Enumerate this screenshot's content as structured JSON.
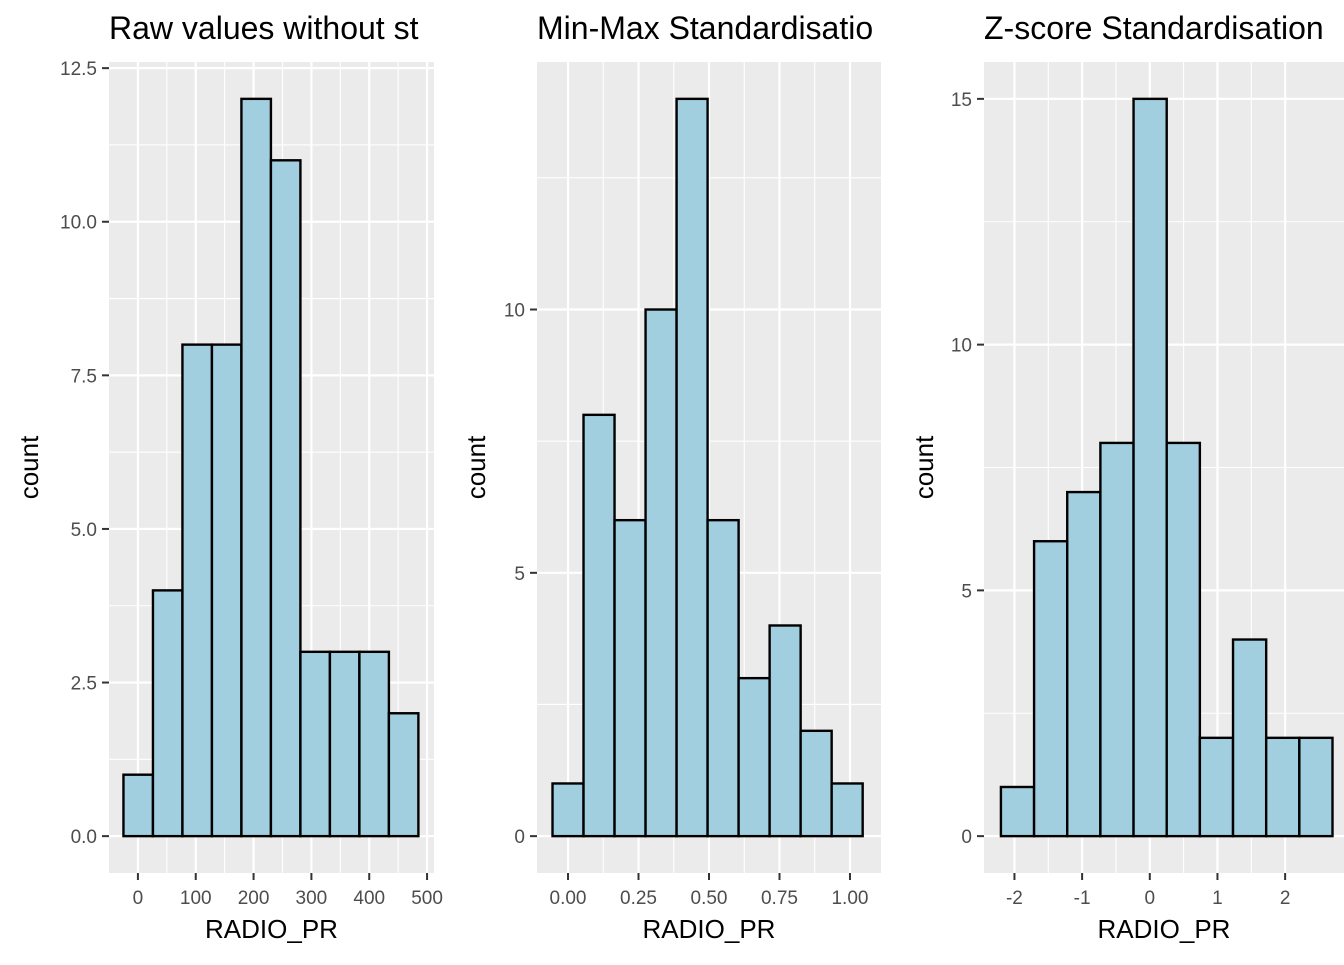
{
  "colors": {
    "bar_fill": "#a1cfe0",
    "bar_outline": "#000000",
    "panel_background": "#ebebeb",
    "grid": "#ffffff"
  },
  "chart_data": [
    {
      "type": "bar",
      "title": "Raw values without st",
      "xlabel": "RADIO_PR",
      "ylabel": "count",
      "grid": true,
      "xlim": [
        -50,
        512
      ],
      "ylim": [
        -0.6,
        12.6
      ],
      "xticks": [
        0,
        100,
        200,
        300,
        400,
        500
      ],
      "xtick_labels": [
        "0",
        "100",
        "200",
        "300",
        "400",
        "500"
      ],
      "yticks": [
        0,
        2.5,
        5,
        7.5,
        10,
        12.5
      ],
      "ytick_labels": [
        "0.0",
        "2.5",
        "5.0",
        "7.5",
        "10.0",
        "12.5"
      ],
      "bins": [
        {
          "x0": -25,
          "x1": 26,
          "count": 1
        },
        {
          "x0": 26,
          "x1": 77,
          "count": 4
        },
        {
          "x0": 77,
          "x1": 128,
          "count": 8
        },
        {
          "x0": 128,
          "x1": 179,
          "count": 8
        },
        {
          "x0": 179,
          "x1": 230,
          "count": 12
        },
        {
          "x0": 230,
          "x1": 281,
          "count": 11
        },
        {
          "x0": 281,
          "x1": 332,
          "count": 3
        },
        {
          "x0": 332,
          "x1": 383,
          "count": 3
        },
        {
          "x0": 383,
          "x1": 434,
          "count": 3
        },
        {
          "x0": 434,
          "x1": 485,
          "count": 2
        }
      ]
    },
    {
      "type": "bar",
      "title": "Min-Max Standardisatio",
      "xlabel": "RADIO_PR",
      "ylabel": "count",
      "grid": true,
      "xlim": [
        -0.11,
        1.11
      ],
      "ylim": [
        -0.7,
        14.7
      ],
      "xticks": [
        0,
        0.25,
        0.5,
        0.75,
        1.0
      ],
      "xtick_labels": [
        "0.00",
        "0.25",
        "0.50",
        "0.75",
        "1.00"
      ],
      "yticks": [
        0,
        5,
        10
      ],
      "ytick_labels": [
        "0",
        "5",
        "10"
      ],
      "bins": [
        {
          "x0": -0.055,
          "x1": 0.055,
          "count": 1
        },
        {
          "x0": 0.055,
          "x1": 0.165,
          "count": 8
        },
        {
          "x0": 0.165,
          "x1": 0.275,
          "count": 6
        },
        {
          "x0": 0.275,
          "x1": 0.385,
          "count": 10
        },
        {
          "x0": 0.385,
          "x1": 0.495,
          "count": 14
        },
        {
          "x0": 0.495,
          "x1": 0.605,
          "count": 6
        },
        {
          "x0": 0.605,
          "x1": 0.715,
          "count": 3
        },
        {
          "x0": 0.715,
          "x1": 0.825,
          "count": 4
        },
        {
          "x0": 0.825,
          "x1": 0.935,
          "count": 2
        },
        {
          "x0": 0.935,
          "x1": 1.045,
          "count": 1
        }
      ]
    },
    {
      "type": "bar",
      "title": "Z-score Standardisation",
      "xlabel": "RADIO_PR",
      "ylabel": "count",
      "grid": true,
      "xlim": [
        -2.45,
        2.87
      ],
      "ylim": [
        -0.75,
        15.75
      ],
      "xticks": [
        -2,
        -1,
        0,
        1,
        2
      ],
      "xtick_labels": [
        "-2",
        "-1",
        "0",
        "1",
        "2"
      ],
      "yticks": [
        0,
        5,
        10,
        15
      ],
      "ytick_labels": [
        "0",
        "5",
        "10",
        "15"
      ],
      "bins": [
        {
          "x0": -2.2,
          "x1": -1.71,
          "count": 1
        },
        {
          "x0": -1.71,
          "x1": -1.22,
          "count": 6
        },
        {
          "x0": -1.22,
          "x1": -0.73,
          "count": 7
        },
        {
          "x0": -0.73,
          "x1": -0.24,
          "count": 8
        },
        {
          "x0": -0.24,
          "x1": 0.25,
          "count": 15
        },
        {
          "x0": 0.25,
          "x1": 0.74,
          "count": 8
        },
        {
          "x0": 0.74,
          "x1": 1.23,
          "count": 2
        },
        {
          "x0": 1.23,
          "x1": 1.72,
          "count": 4
        },
        {
          "x0": 1.72,
          "x1": 2.21,
          "count": 2
        },
        {
          "x0": 2.21,
          "x1": 2.7,
          "count": 2
        }
      ]
    }
  ]
}
